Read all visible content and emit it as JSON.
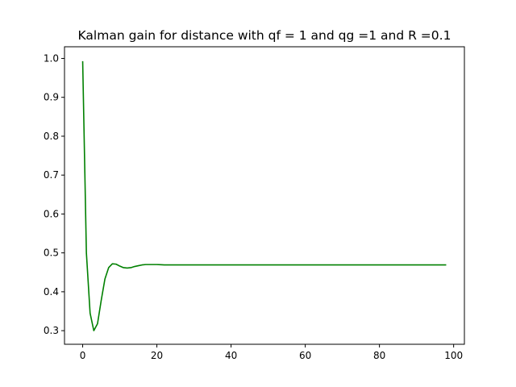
{
  "chart_data": {
    "type": "line",
    "title": "Kalman gain for distance with qf = 1 and qg =1 and  R =0.1",
    "xlabel": "",
    "ylabel": "",
    "xlim": [
      -4.9,
      102.9
    ],
    "ylim": [
      0.265,
      1.03
    ],
    "xticks": [
      0,
      20,
      40,
      60,
      80,
      100
    ],
    "xtick_labels": [
      "0",
      "20",
      "40",
      "60",
      "80",
      "100"
    ],
    "yticks": [
      0.3,
      0.4,
      0.5,
      0.6,
      0.7,
      0.8,
      0.9,
      1.0
    ],
    "ytick_labels": [
      "0.3",
      "0.4",
      "0.5",
      "0.6",
      "0.7",
      "0.8",
      "0.9",
      "1.0"
    ],
    "grid": false,
    "series": [
      {
        "name": "Kalman gain",
        "color": "#008000",
        "x": [
          0,
          1,
          2,
          3,
          4,
          5,
          6,
          7,
          8,
          9,
          10,
          11,
          12,
          13,
          14,
          15,
          16,
          17,
          18,
          19,
          20,
          21,
          22,
          23,
          24,
          25,
          26,
          27,
          28,
          29,
          30,
          31,
          32,
          33,
          34,
          35,
          36,
          37,
          38,
          39,
          40,
          41,
          42,
          43,
          44,
          45,
          46,
          47,
          48,
          49,
          50,
          51,
          52,
          53,
          54,
          55,
          56,
          57,
          58,
          59,
          60,
          61,
          62,
          63,
          64,
          65,
          66,
          67,
          68,
          69,
          70,
          71,
          72,
          73,
          74,
          75,
          76,
          77,
          78,
          79,
          80,
          81,
          82,
          83,
          84,
          85,
          86,
          87,
          88,
          89,
          90,
          91,
          92,
          93,
          94,
          95,
          96,
          97,
          98
        ],
        "y": [
          0.993,
          0.5,
          0.345,
          0.3,
          0.318,
          0.378,
          0.433,
          0.462,
          0.472,
          0.471,
          0.466,
          0.462,
          0.461,
          0.462,
          0.465,
          0.467,
          0.469,
          0.47,
          0.47,
          0.47,
          0.47,
          0.4695,
          0.469,
          0.469,
          0.469,
          0.469,
          0.469,
          0.469,
          0.469,
          0.469,
          0.469,
          0.469,
          0.469,
          0.469,
          0.469,
          0.469,
          0.469,
          0.469,
          0.469,
          0.469,
          0.469,
          0.469,
          0.469,
          0.469,
          0.469,
          0.469,
          0.469,
          0.469,
          0.469,
          0.469,
          0.469,
          0.469,
          0.469,
          0.469,
          0.469,
          0.469,
          0.469,
          0.469,
          0.469,
          0.469,
          0.469,
          0.469,
          0.469,
          0.469,
          0.469,
          0.469,
          0.469,
          0.469,
          0.469,
          0.469,
          0.469,
          0.469,
          0.469,
          0.469,
          0.469,
          0.469,
          0.469,
          0.469,
          0.469,
          0.469,
          0.469,
          0.469,
          0.469,
          0.469,
          0.469,
          0.469,
          0.469,
          0.469,
          0.469,
          0.469,
          0.469,
          0.469,
          0.469,
          0.469,
          0.469,
          0.469,
          0.469,
          0.469,
          0.469
        ]
      }
    ]
  }
}
